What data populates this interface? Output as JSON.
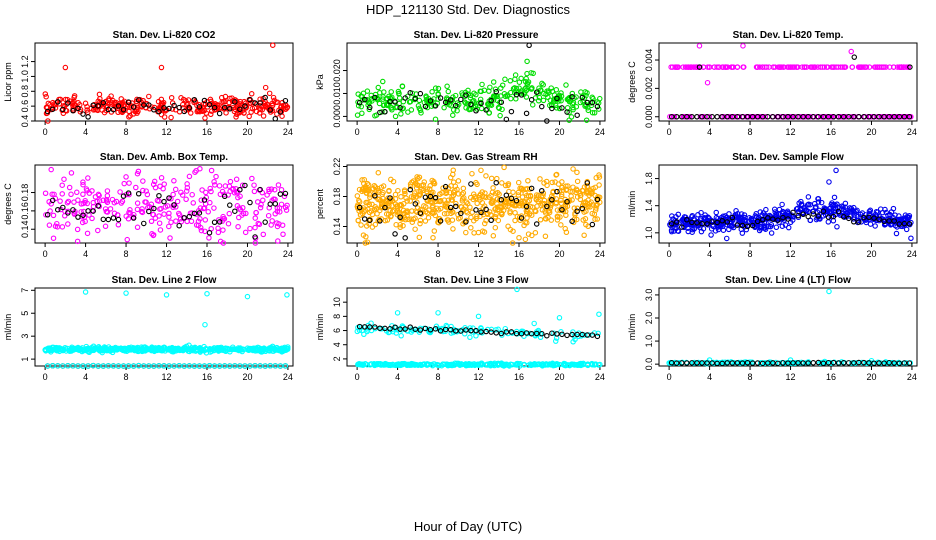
{
  "figure": {
    "title": "HDP_121130  Std. Dev. Diagnostics",
    "xlabel": "Hour of Day (UTC)"
  },
  "chart_data": [
    {
      "type": "scatter",
      "title": "Stan. Dev. Li-820 CO2",
      "ylabel": "Licor ppm",
      "color": "#ff0000",
      "xlim": [
        -1,
        24.5
      ],
      "ylim": [
        0.4,
        1.45
      ],
      "yticks": [
        "0.4",
        "0.6",
        "0.8",
        "1.0",
        "1.2"
      ],
      "ytick_values": [
        0.4,
        0.6,
        0.8,
        1.0,
        1.2
      ],
      "xticks": [
        "0",
        "4",
        "8",
        "12",
        "16",
        "20",
        "24"
      ],
      "base": 0.6,
      "spread": 0.06,
      "n": 320,
      "outliers": [
        [
          2.0,
          1.12
        ],
        [
          11.5,
          1.12
        ],
        [
          21.8,
          0.85
        ],
        [
          22.5,
          1.42
        ],
        [
          15.8,
          0.44
        ],
        [
          8.4,
          0.47
        ]
      ],
      "hourly_base": 0.6,
      "hourly_spread": 0.05
    },
    {
      "type": "scatter",
      "title": "Stan. Dev. Li-820 Pressure",
      "ylabel": "kPa",
      "color": "#00dd00",
      "xlim": [
        -1,
        24.5
      ],
      "ylim": [
        -0.002,
        0.032
      ],
      "yticks": [
        "0.000",
        "0.010",
        "0.020"
      ],
      "ytick_values": [
        0.0,
        0.01,
        0.02
      ],
      "xticks": [
        "0",
        "4",
        "8",
        "12",
        "16",
        "20",
        "24"
      ],
      "base": 0.006,
      "spread": 0.003,
      "n": 320,
      "bump": {
        "center": 16.5,
        "width": 2.5,
        "height": 0.007
      },
      "outliers": [
        [
          16.8,
          0.024
        ],
        [
          13.5,
          0.015
        ],
        [
          3.8,
          0.0
        ],
        [
          17.2,
          0.019
        ]
      ],
      "hourly_base": 0.006,
      "hourly_spread": 0.003,
      "hourly_outliers": [
        [
          17.0,
          0.031
        ]
      ]
    },
    {
      "type": "scatter",
      "title": "Stan. Dev. Li-820 Temp.",
      "ylabel": "degrees C",
      "color": "#ff00ff",
      "xlim": [
        -1,
        24.5
      ],
      "ylim": [
        -0.0003,
        0.0052
      ],
      "yticks": [
        "0.000",
        "0.002",
        "0.004"
      ],
      "ytick_values": [
        0.0,
        0.002,
        0.004
      ],
      "xticks": [
        "0",
        "4",
        "8",
        "12",
        "16",
        "20",
        "24"
      ],
      "mode": "discrete",
      "levels": [
        0.0,
        0.0035
      ],
      "n": 300,
      "outliers": [
        [
          3.0,
          0.005
        ],
        [
          7.3,
          0.005
        ],
        [
          3.8,
          0.0024
        ],
        [
          18.0,
          0.0046
        ]
      ],
      "hourly_levels": [
        0.0
      ],
      "hourly_outliers": [
        [
          3.0,
          0.0035
        ],
        [
          18.3,
          0.0042
        ],
        [
          23.8,
          0.0035
        ]
      ]
    },
    {
      "type": "scatter",
      "title": "Stan. Dev. Amb. Box Temp.",
      "ylabel": "degrees C",
      "color": "#ff00ff",
      "xlim": [
        -1,
        24.5
      ],
      "ylim": [
        0.125,
        0.21
      ],
      "yticks": [
        "0.14",
        "0.16",
        "0.18"
      ],
      "ytick_values": [
        0.14,
        0.16,
        0.18
      ],
      "xticks": [
        "0",
        "4",
        "8",
        "12",
        "16",
        "20",
        "24"
      ],
      "base": 0.163,
      "spread": 0.018,
      "n": 300,
      "outliers": [
        [
          0.6,
          0.205
        ],
        [
          20.8,
          0.13
        ],
        [
          8.0,
          0.197
        ]
      ],
      "hourly_base": 0.163,
      "hourly_spread": 0.012
    },
    {
      "type": "scatter",
      "title": "Stan. Dev. Gas Stream RH",
      "ylabel": "percent",
      "color": "#ffaa00",
      "xlim": [
        -1,
        24.5
      ],
      "ylim": [
        0.118,
        0.222
      ],
      "yticks": [
        "0.14",
        "0.18",
        "0.22"
      ],
      "ytick_values": [
        0.14,
        0.18,
        0.22
      ],
      "xticks": [
        "0",
        "4",
        "8",
        "12",
        "16",
        "20",
        "24"
      ],
      "base": 0.17,
      "spread": 0.018,
      "n": 650,
      "outliers": [
        [
          9.5,
          0.215
        ],
        [
          16.0,
          0.125
        ],
        [
          7.5,
          0.125
        ]
      ],
      "hourly_base": 0.17,
      "hourly_spread": 0.015
    },
    {
      "type": "scatter",
      "title": "Stan. Dev. Sample Flow",
      "ylabel": "ml/min",
      "color": "#0000ee",
      "xlim": [
        -1,
        24.5
      ],
      "ylim": [
        0.85,
        2.0
      ],
      "yticks": [
        "1.0",
        "1.4",
        "1.8"
      ],
      "ytick_values": [
        1.0,
        1.4,
        1.8
      ],
      "xticks": [
        "0",
        "4",
        "8",
        "12",
        "16",
        "20",
        "24"
      ],
      "base": 1.15,
      "spread": 0.07,
      "n": 500,
      "bump": {
        "center": 15.5,
        "width": 5.0,
        "height": 0.18
      },
      "outliers": [
        [
          16.5,
          1.92
        ],
        [
          15.8,
          1.75
        ],
        [
          23.9,
          0.92
        ]
      ],
      "hourly_base": 1.15,
      "hourly_spread": 0.04,
      "hourly_bump": {
        "center": 15.0,
        "width": 5.0,
        "height": 0.12
      }
    },
    {
      "type": "scatter",
      "title": "Stan. Dev. Line 2 Flow",
      "ylabel": "ml/min",
      "color": "#00ffff",
      "xlim": [
        -1,
        24.5
      ],
      "ylim": [
        0.4,
        7.2
      ],
      "yticks": [
        "1",
        "3",
        "5",
        "7"
      ],
      "ytick_values": [
        1,
        3,
        5,
        7
      ],
      "xticks": [
        "0",
        "4",
        "8",
        "12",
        "16",
        "20",
        "24"
      ],
      "base": 1.85,
      "spread": 0.1,
      "n": 500,
      "outliers": [
        [
          4.0,
          6.85
        ],
        [
          8.0,
          6.75
        ],
        [
          12.0,
          6.6
        ],
        [
          16.0,
          6.7
        ],
        [
          20.0,
          6.45
        ],
        [
          23.9,
          6.6
        ],
        [
          15.8,
          4.0
        ]
      ],
      "hourly_base": 0.4,
      "hourly_spread": 0.02,
      "hourly_overlay": true
    },
    {
      "type": "scatter",
      "title": "Stan. Dev. Line 3 Flow",
      "ylabel": "ml/min",
      "color": "#00ffff",
      "xlim": [
        -1,
        24.5
      ],
      "ylim": [
        1.0,
        12.0
      ],
      "yticks": [
        "2",
        "4",
        "6",
        "8",
        "10"
      ],
      "ytick_values": [
        2,
        4,
        6,
        8,
        10
      ],
      "xticks": [
        "0",
        "4",
        "8",
        "12",
        "16",
        "20",
        "24"
      ],
      "base": 1.2,
      "spread": 0.08,
      "n": 300,
      "outliers": [
        [
          4.0,
          8.5
        ],
        [
          8.0,
          8.5
        ],
        [
          12.0,
          8.0
        ],
        [
          15.8,
          11.8
        ],
        [
          20.0,
          7.8
        ],
        [
          23.9,
          8.3
        ],
        [
          0.5,
          6.0
        ],
        [
          17.5,
          7.0
        ]
      ],
      "hourly_linear": [
        6.5,
        5.3
      ],
      "hourly_spread": 0.1,
      "second_band": {
        "linear": [
          6.3,
          5.4
        ],
        "spread": 0.35,
        "n": 120
      }
    },
    {
      "type": "scatter",
      "title": "Stan. Dev. Line 4 (LT) Flow",
      "ylabel": "ml/min",
      "color": "#00ffff",
      "xlim": [
        -1,
        24.5
      ],
      "ylim": [
        -0.08,
        3.3
      ],
      "yticks": [
        "0.0",
        "1.0",
        "2.0",
        "3.0"
      ],
      "ytick_values": [
        0.0,
        1.0,
        2.0,
        3.0
      ],
      "xticks": [
        "0",
        "4",
        "8",
        "12",
        "16",
        "20",
        "24"
      ],
      "base": 0.06,
      "spread": 0.015,
      "n": 150,
      "outliers": [
        [
          15.8,
          3.15
        ],
        [
          4.0,
          0.18
        ],
        [
          12.0,
          0.18
        ],
        [
          20.0,
          0.15
        ],
        [
          0.0,
          0.05
        ]
      ],
      "hourly_base": 0.05,
      "hourly_spread": 0.01
    }
  ],
  "hourly_color": "#000000"
}
